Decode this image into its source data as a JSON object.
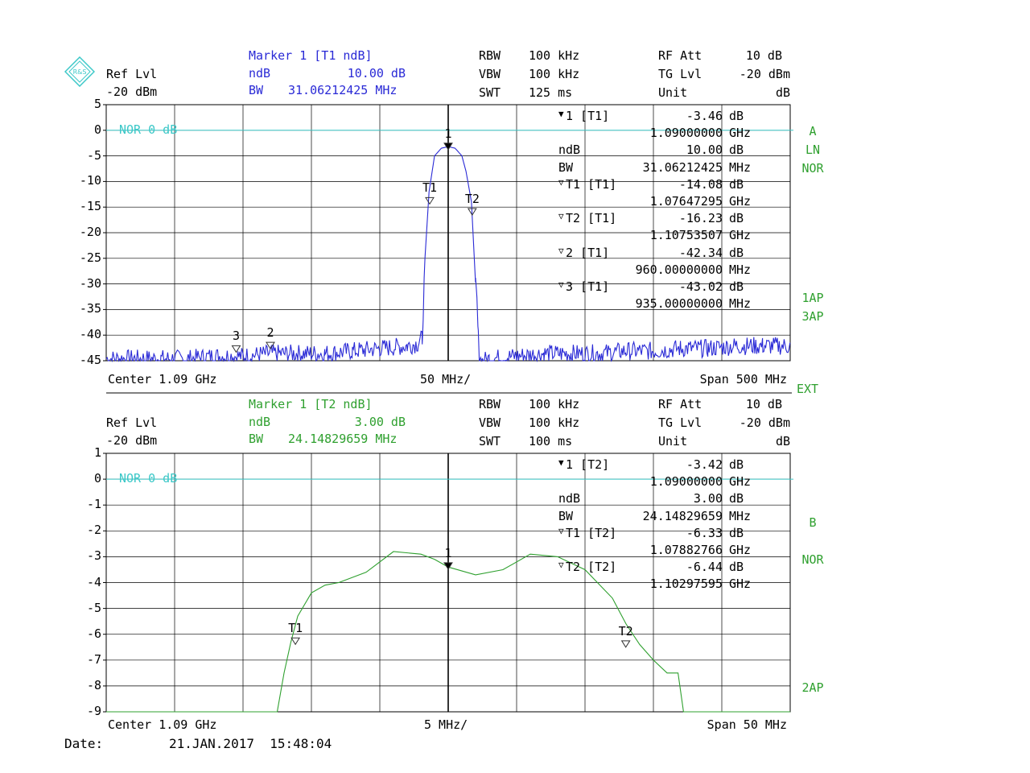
{
  "logo_text": "R&S",
  "colors": {
    "trace_a": "#2a2ad6",
    "trace_b": "#2fa02f",
    "ref_line": "#3cc8c8",
    "grid": "#000000"
  },
  "date": {
    "label": "Date:",
    "value": "21.JAN.2017  15:48:04"
  },
  "ext_label": "EXT",
  "top": {
    "marker_title": "Marker 1 [T1 ndB]",
    "ndb_label": "ndB",
    "ndb_value": "10.00 dB",
    "bw_label": "BW",
    "bw_value": "31.06212425 MHz",
    "ref_lvl_label": "Ref Lvl",
    "ref_lvl_value": "-20 dBm",
    "rbw_label": "RBW",
    "rbw_value": "100 kHz",
    "vbw_label": "VBW",
    "vbw_value": "100 kHz",
    "swt_label": "SWT",
    "swt_value": "125 ms",
    "rfatt_label": "RF Att",
    "rfatt_value": "10 dB",
    "tglvl_label": "TG Lvl",
    "tglvl_value": "-20 dBm",
    "unit_label": "Unit",
    "unit_value": "dB",
    "y_ticks": [
      "5",
      "0",
      "-5",
      "-10",
      "-15",
      "-20",
      "-25",
      "-30",
      "-35",
      "-40",
      "-45"
    ],
    "ref_line_label": "NOR 0 dB",
    "side_labels": [
      "A",
      "LN",
      "NOR",
      "1AP",
      "3AP"
    ],
    "center": "Center 1.09 GHz",
    "div": "50 MHz/",
    "span": "Span 500 MHz",
    "marker_table": [
      {
        "sym": "▼",
        "name": "1 [T1]",
        "value": "-3.46",
        "unit": "dB"
      },
      {
        "sym": "",
        "name": "",
        "value": "1.09000000",
        "unit": "GHz"
      },
      {
        "sym": "",
        "name": "ndB",
        "value": "10.00",
        "unit": "dB"
      },
      {
        "sym": "",
        "name": "BW",
        "value": "31.06212425",
        "unit": "MHz"
      },
      {
        "sym": "▽",
        "name": "T1 [T1]",
        "value": "-14.08",
        "unit": "dB"
      },
      {
        "sym": "",
        "name": "",
        "value": "1.07647295",
        "unit": "GHz"
      },
      {
        "sym": "▽",
        "name": "T2 [T1]",
        "value": "-16.23",
        "unit": "dB"
      },
      {
        "sym": "",
        "name": "",
        "value": "1.10753507",
        "unit": "GHz"
      },
      {
        "sym": "▽",
        "name": "2 [T1]",
        "value": "-42.34",
        "unit": "dB"
      },
      {
        "sym": "",
        "name": "",
        "value": "960.00000000",
        "unit": "MHz"
      },
      {
        "sym": "▽",
        "name": "3 [T1]",
        "value": "-43.02",
        "unit": "dB"
      },
      {
        "sym": "",
        "name": "",
        "value": "935.00000000",
        "unit": "MHz"
      }
    ],
    "trace_markers": [
      {
        "label": "1",
        "x_mhz": 1090,
        "y_db": -3.46,
        "filled": true
      },
      {
        "label": "T1",
        "x_mhz": 1076.47,
        "y_db": -14.08,
        "filled": false
      },
      {
        "label": "T2",
        "x_mhz": 1107.54,
        "y_db": -16.23,
        "filled": false
      },
      {
        "label": "2",
        "x_mhz": 960,
        "y_db": -42.34,
        "filled": false
      },
      {
        "label": "3",
        "x_mhz": 935,
        "y_db": -43.02,
        "filled": false
      }
    ]
  },
  "bottom": {
    "marker_title": "Marker 1 [T2 ndB]",
    "ndb_label": "ndB",
    "ndb_value": "3.00 dB",
    "bw_label": "BW",
    "bw_value": "24.14829659 MHz",
    "ref_lvl_label": "Ref Lvl",
    "ref_lvl_value": "-20 dBm",
    "rbw_label": "RBW",
    "rbw_value": "100 kHz",
    "vbw_label": "VBW",
    "vbw_value": "100 kHz",
    "swt_label": "SWT",
    "swt_value": "100 ms",
    "rfatt_label": "RF Att",
    "rfatt_value": "10 dB",
    "tglvl_label": "TG Lvl",
    "tglvl_value": "-20 dBm",
    "unit_label": "Unit",
    "unit_value": "dB",
    "y_ticks": [
      "1",
      "0",
      "-1",
      "-2",
      "-3",
      "-4",
      "-5",
      "-6",
      "-7",
      "-8",
      "-9"
    ],
    "ref_line_label": "NOR 0 dB",
    "side_labels": [
      "B",
      "NOR",
      "2AP"
    ],
    "center": "Center 1.09 GHz",
    "div": "5 MHz/",
    "span": "Span 50 MHz",
    "marker_table": [
      {
        "sym": "▼",
        "name": "1 [T2]",
        "value": "-3.42",
        "unit": "dB"
      },
      {
        "sym": "",
        "name": "",
        "value": "1.09000000",
        "unit": "GHz"
      },
      {
        "sym": "",
        "name": "ndB",
        "value": "3.00",
        "unit": "dB"
      },
      {
        "sym": "",
        "name": "BW",
        "value": "24.14829659",
        "unit": "MHz"
      },
      {
        "sym": "▽",
        "name": "T1 [T2]",
        "value": "-6.33",
        "unit": "dB"
      },
      {
        "sym": "",
        "name": "",
        "value": "1.07882766",
        "unit": "GHz"
      },
      {
        "sym": "▽",
        "name": "T2 [T2]",
        "value": "-6.44",
        "unit": "dB"
      },
      {
        "sym": "",
        "name": "",
        "value": "1.10297595",
        "unit": "GHz"
      }
    ],
    "trace_markers": [
      {
        "label": "1",
        "x_mhz": 1090,
        "y_db": -3.42,
        "filled": true
      },
      {
        "label": "T1",
        "x_mhz": 1078.83,
        "y_db": -6.33,
        "filled": false
      },
      {
        "label": "T2",
        "x_mhz": 1102.98,
        "y_db": -6.44,
        "filled": false
      }
    ]
  },
  "chart_data": [
    {
      "type": "line",
      "title": "",
      "xlabel": "",
      "ylabel": "",
      "xlim": [
        840,
        1340
      ],
      "ylim": [
        -45,
        5
      ],
      "grid": true,
      "series": [
        {
          "x": [
            840,
            860,
            880,
            900,
            920,
            940,
            960,
            980,
            1000,
            1020,
            1040,
            1060,
            1068,
            1071,
            1073,
            1076,
            1080,
            1085,
            1090,
            1095,
            1100,
            1103,
            1107,
            1110,
            1111,
            1112,
            1113,
            1115,
            1120,
            1140,
            1160,
            1180,
            1200,
            1220,
            1240,
            1260,
            1280,
            1300,
            1320,
            1340
          ],
          "y": [
            -44,
            -44,
            -44,
            -44,
            -43.5,
            -43.5,
            -43,
            -43,
            -43,
            -42.5,
            -42,
            -41.5,
            -41,
            -40,
            -25,
            -12,
            -5,
            -3.5,
            -3.2,
            -3.5,
            -5,
            -8,
            -14,
            -30,
            -33,
            -40,
            -44,
            -44.5,
            -44,
            -43.5,
            -43,
            -43,
            -43,
            -42.5,
            -42.5,
            -42,
            -42,
            -41.5,
            -41.5,
            -41.5
          ]
        }
      ]
    },
    {
      "type": "line",
      "title": "",
      "xlabel": "",
      "ylabel": "",
      "xlim": [
        1065,
        1115
      ],
      "ylim": [
        -9,
        1
      ],
      "grid": true,
      "series": [
        {
          "x": [
            1065,
            1077.5,
            1078,
            1078.5,
            1079,
            1080,
            1081,
            1082,
            1084,
            1086,
            1088,
            1089,
            1090,
            1092,
            1094,
            1096,
            1098,
            1100,
            1102,
            1103,
            1104,
            1105,
            1106,
            1106.8,
            1107.2,
            1115
          ],
          "y": [
            -9,
            -9,
            -7.5,
            -6.3,
            -5.3,
            -4.4,
            -4.1,
            -4.0,
            -3.6,
            -2.8,
            -2.9,
            -3.1,
            -3.4,
            -3.7,
            -3.5,
            -2.9,
            -3.0,
            -3.5,
            -4.6,
            -5.6,
            -6.4,
            -7.0,
            -7.5,
            -7.5,
            -9,
            -9
          ]
        }
      ]
    }
  ]
}
